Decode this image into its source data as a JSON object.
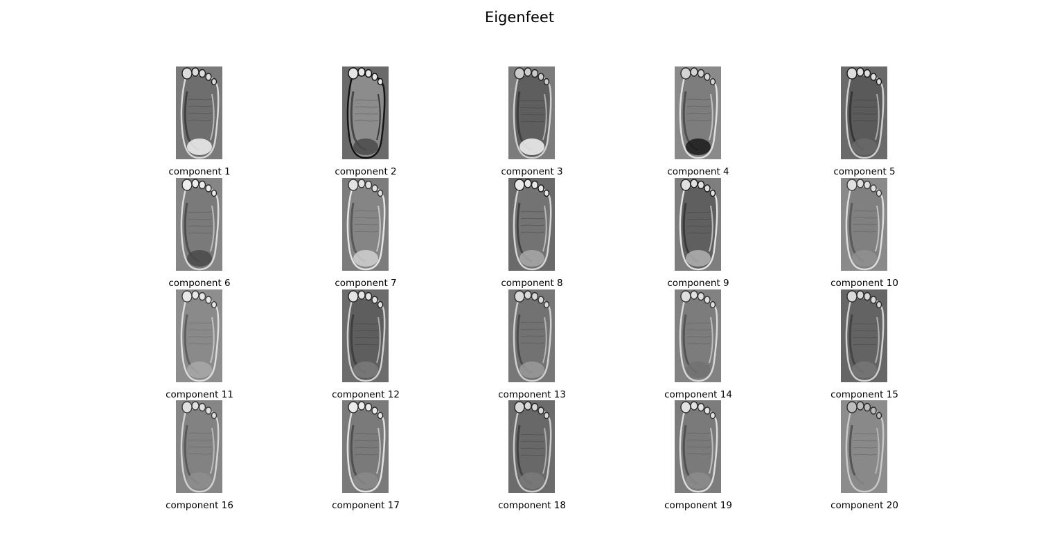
{
  "title": "Eigenfeet",
  "components": [
    {
      "label": "component 1",
      "bg": "#7a7a7a",
      "sole": "#6e6e6e",
      "edge": "#d8d8d8",
      "heel": "#f2f2f2",
      "toe": "#dcdcdc",
      "dark": "#1e1e1e"
    },
    {
      "label": "component 2",
      "bg": "#6a6a6a",
      "sole": "#8c8c8c",
      "edge": "#151515",
      "heel": "#4a4a4a",
      "toe": "#e6e6e6",
      "dark": "#111111"
    },
    {
      "label": "component 3",
      "bg": "#7c7c7c",
      "sole": "#5e5e5e",
      "edge": "#cfcfcf",
      "heel": "#f4f4f4",
      "toe": "#cccccc",
      "dark": "#222222"
    },
    {
      "label": "component 4",
      "bg": "#8a8a8a",
      "sole": "#7d7d7d",
      "edge": "#e0e0e0",
      "heel": "#1a1a1a",
      "toe": "#d4d4d4",
      "dark": "#2a2a2a"
    },
    {
      "label": "component 5",
      "bg": "#6a6a6a",
      "sole": "#5a5a5a",
      "edge": "#cfcfcf",
      "heel": "#6a6a6a",
      "toe": "#dedede",
      "dark": "#1a1a1a"
    },
    {
      "label": "component 6",
      "bg": "#868686",
      "sole": "#7a7a7a",
      "edge": "#dadada",
      "heel": "#4a4a4a",
      "toe": "#ececec",
      "dark": "#2a2a2a"
    },
    {
      "label": "component 7",
      "bg": "#7c7c7c",
      "sole": "#858585",
      "edge": "#e4e4e4",
      "heel": "#d0d0d0",
      "toe": "#e2e2e2",
      "dark": "#333333"
    },
    {
      "label": "component 8",
      "bg": "#6a6a6a",
      "sole": "#737373",
      "edge": "#d6d6d6",
      "heel": "#a8a8a8",
      "toe": "#e8e8e8",
      "dark": "#1c1c1c"
    },
    {
      "label": "component 9",
      "bg": "#7e7e7e",
      "sole": "#5f5f5f",
      "edge": "#e2e2e2",
      "heel": "#b2b2b2",
      "toe": "#e0e0e0",
      "dark": "#1c1c1c"
    },
    {
      "label": "component 10",
      "bg": "#8a8a8a",
      "sole": "#808080",
      "edge": "#dddddd",
      "heel": "#909090",
      "toe": "#e0e0e0",
      "dark": "#3a3a3a"
    },
    {
      "label": "component 11",
      "bg": "#8e8e8e",
      "sole": "#8a8a8a",
      "edge": "#dcdcdc",
      "heel": "#a8a8a8",
      "toe": "#e8e8e8",
      "dark": "#3c3c3c"
    },
    {
      "label": "component 12",
      "bg": "#6c6c6c",
      "sole": "#5e5e5e",
      "edge": "#d0d0d0",
      "heel": "#7a7a7a",
      "toe": "#e4e4e4",
      "dark": "#262626"
    },
    {
      "label": "component 13",
      "bg": "#777777",
      "sole": "#727272",
      "edge": "#d0d0d0",
      "heel": "#9a9a9a",
      "toe": "#dadada",
      "dark": "#2e2e2e"
    },
    {
      "label": "component 14",
      "bg": "#828282",
      "sole": "#7c7c7c",
      "edge": "#d8d8d8",
      "heel": "#727272",
      "toe": "#e0e0e0",
      "dark": "#333333"
    },
    {
      "label": "component 15",
      "bg": "#666666",
      "sole": "#636363",
      "edge": "#d0d0d0",
      "heel": "#767676",
      "toe": "#dadada",
      "dark": "#2a2a2a"
    },
    {
      "label": "component 16",
      "bg": "#868686",
      "sole": "#828282",
      "edge": "#d2d2d2",
      "heel": "#8e8e8e",
      "toe": "#e0e0e0",
      "dark": "#3a3a3a"
    },
    {
      "label": "component 17",
      "bg": "#7a7a7a",
      "sole": "#7a7a7a",
      "edge": "#e2e2e2",
      "heel": "#8a8a8a",
      "toe": "#ebebeb",
      "dark": "#2c2c2c"
    },
    {
      "label": "component 18",
      "bg": "#6c6c6c",
      "sole": "#686868",
      "edge": "#cccccc",
      "heel": "#7a7a7a",
      "toe": "#d8d8d8",
      "dark": "#242424"
    },
    {
      "label": "component 19",
      "bg": "#7c7c7c",
      "sole": "#7a7a7a",
      "edge": "#dcdcdc",
      "heel": "#8c8c8c",
      "toe": "#e2e2e2",
      "dark": "#2e2e2e"
    },
    {
      "label": "component 20",
      "bg": "#8c8c8c",
      "sole": "#898989",
      "edge": "#c8c8c8",
      "heel": "#8a8a8a",
      "toe": "#bdbdbd",
      "dark": "#2a2a2a"
    }
  ]
}
